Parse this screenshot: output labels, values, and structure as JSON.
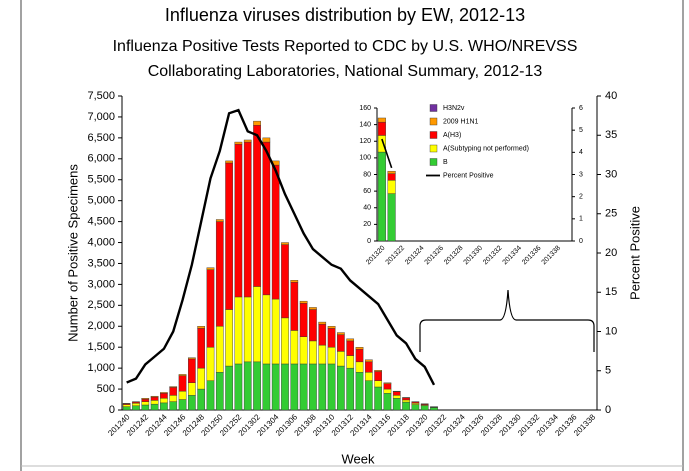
{
  "header": {
    "title": "Influenza viruses distribution by EW, 2012-13"
  },
  "chart_data": [
    {
      "type": "bar",
      "stacked": true,
      "subtitle": [
        "Influenza Positive Tests Reported to CDC by U.S. WHO/NREVSS",
        "Collaborating Laboratories, National Summary, 2012-13"
      ],
      "ylabel": "Number of Positive Specimens",
      "y2label": "Percent Positive",
      "xlabel": "Week",
      "categories": [
        "201240",
        null,
        "201242",
        null,
        "201244",
        null,
        "201246",
        null,
        "201248",
        null,
        "201250",
        null,
        "201252",
        null,
        "201302",
        null,
        "201304",
        null,
        "201306",
        null,
        "201308",
        null,
        "201310",
        null,
        "201312",
        null,
        "201314",
        null,
        "201316",
        null,
        "201318",
        null,
        "201320",
        null,
        "201322",
        null,
        "201324",
        null,
        "201326",
        null,
        "201328",
        null,
        "201330",
        null,
        "201332",
        null,
        "201334",
        null,
        "201336",
        null,
        "201338"
      ],
      "ylim": [
        0,
        7500
      ],
      "yticks": [
        0,
        500,
        {
          "value": 1000,
          "label": "1,000"
        },
        {
          "value": 1500,
          "label": "1,500"
        },
        {
          "value": 2000,
          "label": "2,000"
        },
        {
          "value": 2500,
          "label": "2,500"
        },
        {
          "value": 3000,
          "label": "3,000"
        },
        {
          "value": 3500,
          "label": "3,500"
        },
        {
          "value": 4000,
          "label": "4,000"
        },
        {
          "value": 4500,
          "label": "4,500"
        },
        {
          "value": 5000,
          "label": "5,000"
        },
        {
          "value": 5500,
          "label": "5,500"
        },
        {
          "value": 6000,
          "label": "6,000"
        },
        {
          "value": 6500,
          "label": "6,500"
        },
        {
          "value": 7000,
          "label": "7,000"
        },
        {
          "value": 7500,
          "label": "7,500"
        }
      ],
      "y2lim": [
        0,
        40
      ],
      "y2ticks": [
        0,
        5,
        10,
        15,
        20,
        25,
        30,
        35,
        40
      ],
      "series": [
        {
          "color": "#7030a0",
          "values": [
            0,
            0,
            0,
            0,
            0,
            0,
            0,
            0,
            0,
            0,
            0,
            0,
            0,
            0,
            0,
            0,
            0,
            0,
            0,
            0,
            0,
            0,
            0,
            0,
            0,
            0,
            0,
            0,
            0,
            0,
            0,
            0,
            0,
            0,
            null,
            null,
            null,
            null,
            null,
            null,
            null,
            null,
            null,
            null,
            null,
            null,
            null,
            null,
            null,
            null,
            null
          ]
        },
        {
          "color": "#ff9900",
          "values": [
            10,
            10,
            20,
            20,
            20,
            20,
            30,
            30,
            50,
            50,
            50,
            50,
            50,
            50,
            100,
            100,
            100,
            50,
            50,
            50,
            50,
            50,
            50,
            50,
            50,
            50,
            50,
            30,
            20,
            10,
            10,
            10,
            10,
            5,
            null,
            null,
            null,
            null,
            null,
            null,
            null,
            null,
            null,
            null,
            null,
            null,
            null,
            null,
            null,
            null,
            null
          ]
        },
        {
          "color": "#ff0000",
          "values": [
            20,
            30,
            60,
            80,
            120,
            190,
            370,
            570,
            950,
            1850,
            2500,
            3500,
            3650,
            3700,
            3850,
            3650,
            3200,
            1750,
            1150,
            800,
            750,
            500,
            450,
            400,
            350,
            300,
            250,
            220,
            130,
            90,
            50,
            30,
            20,
            5,
            null,
            null,
            null,
            null,
            null,
            null,
            null,
            null,
            null,
            null,
            null,
            null,
            null,
            null,
            null,
            null,
            null
          ]
        },
        {
          "color": "#ffff00",
          "values": [
            50,
            60,
            80,
            90,
            110,
            150,
            200,
            300,
            500,
            800,
            1100,
            1350,
            1600,
            1550,
            1800,
            1650,
            1550,
            1100,
            800,
            650,
            550,
            450,
            400,
            350,
            300,
            250,
            200,
            150,
            100,
            70,
            50,
            30,
            20,
            10,
            null,
            null,
            null,
            null,
            null,
            null,
            null,
            null,
            null,
            null,
            null,
            null,
            null,
            null,
            null,
            null,
            null
          ]
        },
        {
          "color": "#33cc33",
          "values": [
            80,
            100,
            120,
            140,
            170,
            200,
            250,
            350,
            500,
            700,
            900,
            1050,
            1100,
            1150,
            1150,
            1100,
            1100,
            1100,
            1100,
            1100,
            1100,
            1100,
            1100,
            1050,
            1000,
            900,
            700,
            550,
            400,
            280,
            190,
            130,
            100,
            60,
            null,
            null,
            null,
            null,
            null,
            null,
            null,
            null,
            null,
            null,
            null,
            null,
            null,
            null,
            null,
            null,
            null
          ]
        },
        {
          "type": "line",
          "axis": "y2",
          "color": "#000000",
          "values": [
            3.5,
            4,
            5.8,
            6.8,
            7.8,
            10,
            14,
            18.5,
            24,
            29.5,
            33,
            37.8,
            38.2,
            35.5,
            35,
            33,
            30.5,
            27.5,
            25,
            22.5,
            20.5,
            19.5,
            18.5,
            18,
            16.5,
            15.5,
            14.5,
            13.5,
            11.5,
            9.5,
            8.5,
            6.5,
            5.5,
            3.2,
            null,
            null,
            null,
            null,
            null,
            null,
            null,
            null,
            null,
            null,
            null,
            null,
            null,
            null,
            null,
            null,
            null
          ]
        }
      ]
    },
    {
      "type": "bar",
      "stacked": true,
      "categories": [
        "201320",
        null,
        "201322",
        null,
        "201324",
        null,
        "201326",
        null,
        "201328",
        null,
        "201330",
        null,
        "201332",
        null,
        "201334",
        null,
        "201336",
        null,
        "201338",
        null
      ],
      "ylim": [
        0,
        160
      ],
      "yticks": [
        0,
        20,
        40,
        60,
        80,
        100,
        120,
        140,
        160
      ],
      "y2lim": [
        0,
        6
      ],
      "y2ticks": [
        0,
        1,
        2,
        3,
        4,
        5,
        6
      ],
      "series": [
        {
          "name": "H3N2v",
          "color": "#7030a0",
          "values": [
            0,
            0,
            null,
            null,
            null,
            null,
            null,
            null,
            null,
            null,
            null,
            null,
            null,
            null,
            null,
            null,
            null,
            null,
            null,
            null
          ]
        },
        {
          "name": "2009 H1N1",
          "color": "#ff9900",
          "values": [
            5,
            3,
            null,
            null,
            null,
            null,
            null,
            null,
            null,
            null,
            null,
            null,
            null,
            null,
            null,
            null,
            null,
            null,
            null,
            null
          ]
        },
        {
          "name": "A(H3)",
          "color": "#ff0000",
          "values": [
            16,
            8,
            null,
            null,
            null,
            null,
            null,
            null,
            null,
            null,
            null,
            null,
            null,
            null,
            null,
            null,
            null,
            null,
            null,
            null
          ]
        },
        {
          "name": "A(Subtyping not performed)",
          "color": "#ffff00",
          "values": [
            20,
            16,
            null,
            null,
            null,
            null,
            null,
            null,
            null,
            null,
            null,
            null,
            null,
            null,
            null,
            null,
            null,
            null,
            null,
            null
          ]
        },
        {
          "name": "B",
          "color": "#33cc33",
          "values": [
            107,
            57,
            null,
            null,
            null,
            null,
            null,
            null,
            null,
            null,
            null,
            null,
            null,
            null,
            null,
            null,
            null,
            null,
            null,
            null
          ]
        },
        {
          "name": "Percent Positive",
          "type": "line",
          "axis": "y2",
          "color": "#000000",
          "values": [
            4.6,
            3.3,
            null,
            null,
            null,
            null,
            null,
            null,
            null,
            null,
            null,
            null,
            null,
            null,
            null,
            null,
            null,
            null,
            null,
            null
          ]
        }
      ]
    }
  ]
}
